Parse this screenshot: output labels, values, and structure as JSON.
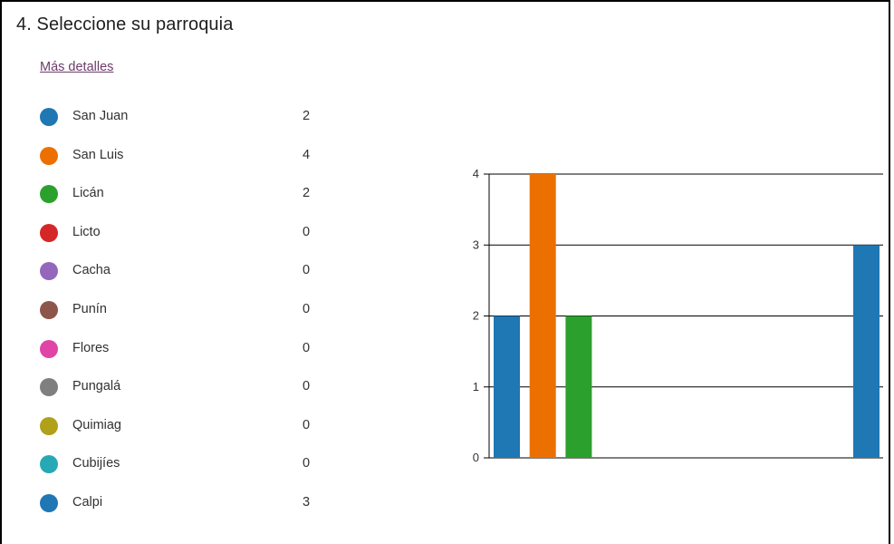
{
  "question": {
    "title": "4.  Seleccione su parroquia"
  },
  "details_link": "Más detalles",
  "legend": [
    {
      "label": "San Juan",
      "count": "2",
      "color": "#1f77b4"
    },
    {
      "label": "San Luis",
      "count": "4",
      "color": "#ec7000"
    },
    {
      "label": "Licán",
      "count": "2",
      "color": "#2ca02c"
    },
    {
      "label": "Licto",
      "count": "0",
      "color": "#d62728"
    },
    {
      "label": "Cacha",
      "count": "0",
      "color": "#9467bd"
    },
    {
      "label": "Punín",
      "count": "0",
      "color": "#8c564b"
    },
    {
      "label": "Flores",
      "count": "0",
      "color": "#e044a7"
    },
    {
      "label": "Pungalá",
      "count": "0",
      "color": "#7f7f7f"
    },
    {
      "label": "Quimiag",
      "count": "0",
      "color": "#b0a01a"
    },
    {
      "label": "Cubijíes",
      "count": "0",
      "color": "#26a9b5"
    },
    {
      "label": "Calpi",
      "count": "3",
      "color": "#1f77b4"
    }
  ],
  "chart_data": {
    "type": "bar",
    "categories": [
      "San Juan",
      "San Luis",
      "Licán",
      "Licto",
      "Cacha",
      "Punín",
      "Flores",
      "Pungalá",
      "Quimiag",
      "Cubijíes",
      "Calpi"
    ],
    "values": [
      2,
      4,
      2,
      0,
      0,
      0,
      0,
      0,
      0,
      0,
      3
    ],
    "colors": [
      "#1f77b4",
      "#ec7000",
      "#2ca02c",
      "#d62728",
      "#9467bd",
      "#8c564b",
      "#e044a7",
      "#7f7f7f",
      "#b0a01a",
      "#26a9b5",
      "#1f77b4"
    ],
    "yticks": [
      "0",
      "1",
      "2",
      "3",
      "4"
    ],
    "ylim": [
      0,
      4
    ],
    "grid": true,
    "legend_position": "left"
  }
}
